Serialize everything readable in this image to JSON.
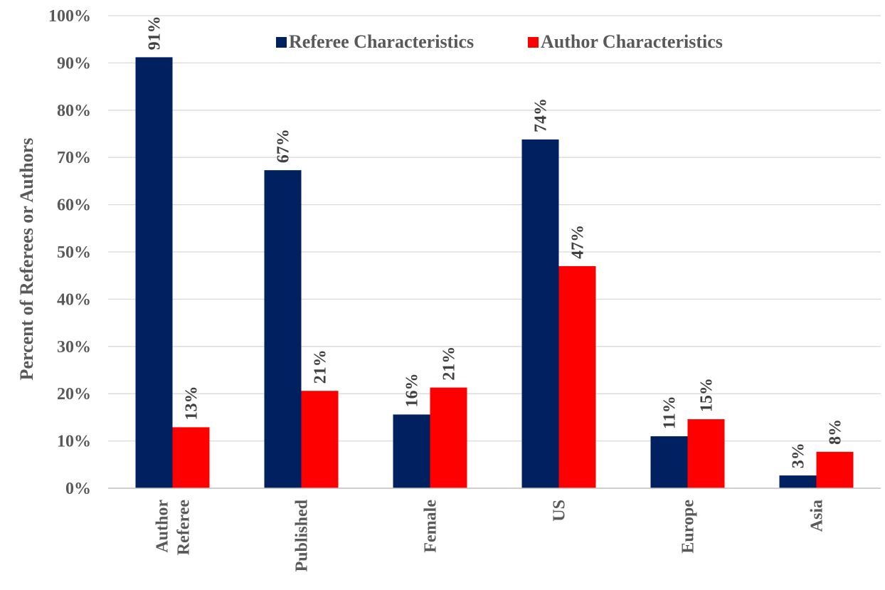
{
  "chart_data": {
    "type": "bar",
    "categories": [
      [
        "Author",
        "Referee"
      ],
      [
        "Published"
      ],
      [
        "Female"
      ],
      [
        "US"
      ],
      [
        "Europe"
      ],
      [
        "Asia"
      ]
    ],
    "series": [
      {
        "name": "Referee Characteristics",
        "color": "#002060",
        "values": [
          91.2,
          67.3,
          15.6,
          73.8,
          11.0,
          2.7
        ],
        "labels": [
          "91%",
          "67%",
          "16%",
          "74%",
          "11%",
          "3%"
        ]
      },
      {
        "name": "Author Characteristics",
        "color": "#ff0000",
        "values": [
          12.9,
          20.6,
          21.3,
          47.0,
          14.6,
          7.7
        ],
        "labels": [
          "13%",
          "21%",
          "21%",
          "47%",
          "15%",
          "8%"
        ]
      }
    ],
    "ylabel": "Percent of Referees or Authors",
    "ylim": [
      0,
      100
    ],
    "yticks": [
      "0%",
      "10%",
      "20%",
      "30%",
      "40%",
      "50%",
      "60%",
      "70%",
      "80%",
      "90%",
      "100%"
    ],
    "legend_position": "top-center",
    "grid": true
  }
}
